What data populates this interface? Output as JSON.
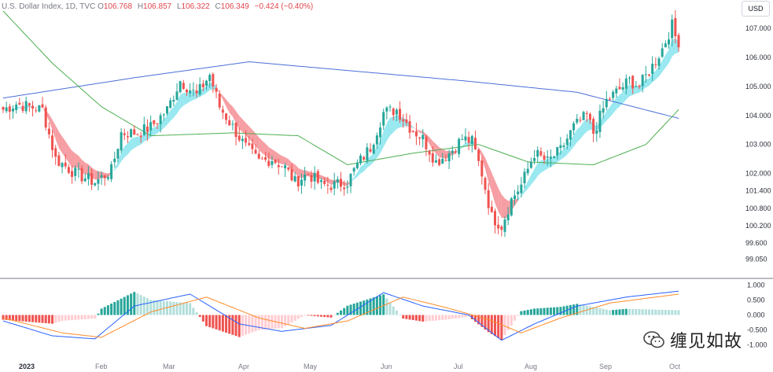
{
  "header": {
    "symbol": "U.S. Dollar Index, 1D, TVC",
    "open_label": "O",
    "open": "106.768",
    "high_label": "H",
    "high": "106.857",
    "low_label": "L",
    "low": "106.322",
    "close_label": "C",
    "close": "106.349",
    "change": "−0.424 (−0.40%)"
  },
  "currency_button": "USD",
  "watermark": {
    "text": "缠见如故",
    "icon": "wechat-icon"
  },
  "colors": {
    "up": "#26a69a",
    "down": "#ef5350",
    "ma_long": "#4a6fd8",
    "ma_mid": "#4caf50",
    "ribbon_up": "#7ee2ec",
    "ribbon_down": "#f4868c",
    "macd": "#2962ff",
    "signal": "#ff8c2a"
  },
  "chart_data": {
    "type": "candlestick",
    "price_axis": {
      "ticks": [
        "107.000",
        "106.000",
        "105.000",
        "104.000",
        "103.000",
        "102.000",
        "101.400",
        "100.800",
        "100.200",
        "99.600",
        "99.050"
      ],
      "range": [
        98.6,
        107.6
      ]
    },
    "time_axis": {
      "labels": [
        "2023",
        "Feb",
        "Mar",
        "Apr",
        "May",
        "Jun",
        "Jul",
        "Aug",
        "Sep",
        "Oct"
      ]
    },
    "macd_axis": {
      "ticks": [
        "1.000",
        "0.500",
        "0.000",
        "-0.500",
        "-1.000"
      ],
      "range": [
        -1.2,
        1.2
      ]
    },
    "series": [
      {
        "name": "U.S. Dollar Index",
        "kind": "candles",
        "keypoints": [
          [
            0,
            104.2
          ],
          [
            4,
            104.4
          ],
          [
            8,
            104.3
          ],
          [
            12,
            104.2
          ],
          [
            16,
            102.5
          ],
          [
            22,
            102.0
          ],
          [
            28,
            101.7
          ],
          [
            33,
            102.1
          ],
          [
            36,
            103.4
          ],
          [
            41,
            103.4
          ],
          [
            45,
            103.6
          ],
          [
            50,
            104.2
          ],
          [
            54,
            105.2
          ],
          [
            59,
            104.7
          ],
          [
            63,
            105.4
          ],
          [
            66,
            104.3
          ],
          [
            70,
            103.6
          ],
          [
            74,
            102.9
          ],
          [
            78,
            102.4
          ],
          [
            82,
            102.5
          ],
          [
            86,
            102.2
          ],
          [
            89,
            101.7
          ],
          [
            93,
            102.0
          ],
          [
            97,
            101.6
          ],
          [
            101,
            101.6
          ],
          [
            105,
            101.7
          ],
          [
            108,
            102.3
          ],
          [
            112,
            102.9
          ],
          [
            116,
            104.1
          ],
          [
            120,
            104.2
          ],
          [
            124,
            103.6
          ],
          [
            128,
            103.2
          ],
          [
            132,
            102.4
          ],
          [
            136,
            102.7
          ],
          [
            140,
            103.2
          ],
          [
            143,
            103.1
          ],
          [
            146,
            102.0
          ],
          [
            149,
            100.5
          ],
          [
            152,
            100.2
          ],
          [
            155,
            101.1
          ],
          [
            158,
            101.6
          ],
          [
            162,
            102.7
          ],
          [
            166,
            102.4
          ],
          [
            170,
            102.8
          ],
          [
            174,
            103.6
          ],
          [
            178,
            104.0
          ],
          [
            180,
            103.4
          ],
          [
            184,
            104.5
          ],
          [
            188,
            104.9
          ],
          [
            191,
            105.2
          ],
          [
            194,
            105.0
          ],
          [
            198,
            105.7
          ],
          [
            201,
            106.3
          ],
          [
            204,
            107.1
          ],
          [
            206,
            106.35
          ]
        ]
      },
      {
        "name": "long MA",
        "kind": "line",
        "points": [
          [
            0,
            104.6
          ],
          [
            40,
            105.3
          ],
          [
            75,
            105.85
          ],
          [
            100,
            105.6
          ],
          [
            140,
            105.2
          ],
          [
            175,
            104.8
          ],
          [
            206,
            103.9
          ]
        ]
      },
      {
        "name": "mid MA",
        "kind": "line",
        "points": [
          [
            0,
            107.6
          ],
          [
            15,
            105.8
          ],
          [
            30,
            104.3
          ],
          [
            45,
            103.3
          ],
          [
            70,
            103.4
          ],
          [
            90,
            103.3
          ],
          [
            105,
            102.3
          ],
          [
            125,
            102.7
          ],
          [
            145,
            103.0
          ],
          [
            160,
            102.4
          ],
          [
            180,
            102.3
          ],
          [
            196,
            103.0
          ],
          [
            206,
            104.2
          ]
        ]
      },
      {
        "name": "MACD",
        "kind": "line",
        "points": [
          [
            0,
            -0.2
          ],
          [
            15,
            -0.7
          ],
          [
            28,
            -0.8
          ],
          [
            40,
            0.3
          ],
          [
            57,
            0.7
          ],
          [
            72,
            -0.3
          ],
          [
            85,
            -0.55
          ],
          [
            100,
            -0.35
          ],
          [
            116,
            0.75
          ],
          [
            128,
            0.3
          ],
          [
            142,
            0.0
          ],
          [
            152,
            -0.85
          ],
          [
            162,
            -0.3
          ],
          [
            175,
            0.3
          ],
          [
            190,
            0.6
          ],
          [
            206,
            0.8
          ]
        ]
      },
      {
        "name": "Signal",
        "kind": "line",
        "points": [
          [
            0,
            -0.1
          ],
          [
            18,
            -0.6
          ],
          [
            30,
            -0.75
          ],
          [
            45,
            0.1
          ],
          [
            62,
            0.6
          ],
          [
            78,
            -0.1
          ],
          [
            92,
            -0.45
          ],
          [
            105,
            -0.2
          ],
          [
            122,
            0.6
          ],
          [
            135,
            0.25
          ],
          [
            148,
            -0.15
          ],
          [
            158,
            -0.6
          ],
          [
            170,
            -0.1
          ],
          [
            185,
            0.4
          ],
          [
            206,
            0.7
          ]
        ]
      }
    ]
  }
}
